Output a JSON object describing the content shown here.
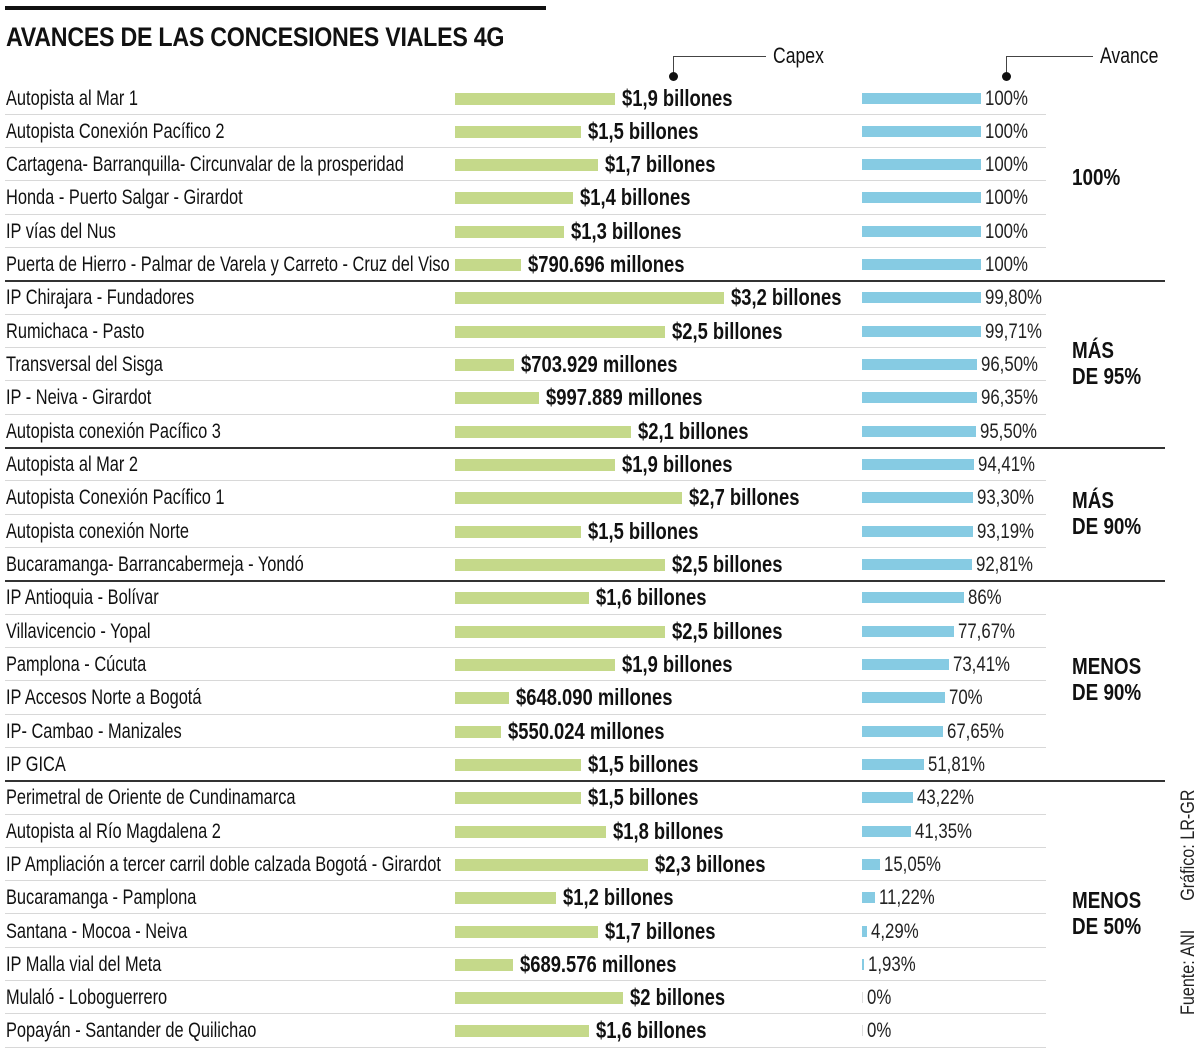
{
  "title": "AVANCES DE LAS CONCESIONES VIALES 4G",
  "source": "Fuente: ANI",
  "credit": "Gráfico: LR-GR",
  "colors": {
    "capex": "#c5d98a",
    "avance": "#86cbe3"
  },
  "chart_data": {
    "type": "bar",
    "orientation": "horizontal",
    "title": "AVANCES DE LAS CONCESIONES VIALES 4G",
    "series": [
      {
        "name": "Capex",
        "unit": "billones COP"
      },
      {
        "name": "Avance",
        "unit": "%"
      }
    ],
    "groups": [
      {
        "label": "100%",
        "rows": [
          0,
          5
        ]
      },
      {
        "label": "MÁS DE 95%",
        "line1": "MÁS",
        "line2": "DE 95%",
        "rows": [
          6,
          10
        ]
      },
      {
        "label": "MÁS DE 90%",
        "line1": "MÁS",
        "line2": "DE 90%",
        "rows": [
          11,
          14
        ]
      },
      {
        "label": "MENOS DE 90%",
        "line1": "MENOS",
        "line2": "DE 90%",
        "rows": [
          15,
          20
        ]
      },
      {
        "label": "MENOS DE 50%",
        "line1": "MENOS",
        "line2": "DE 50%",
        "rows": [
          21,
          28
        ]
      }
    ],
    "rows": [
      {
        "name": "Autopista al Mar 1",
        "capex": 1.9,
        "capex_label": "$1,9 billones",
        "avance": 100,
        "avance_label": "100%"
      },
      {
        "name": "Autopista Conexión Pacífico 2",
        "capex": 1.5,
        "capex_label": "$1,5 billones",
        "avance": 100,
        "avance_label": "100%"
      },
      {
        "name": "Cartagena- Barranquilla- Circunvalar de la prosperidad",
        "capex": 1.7,
        "capex_label": "$1,7 billones",
        "avance": 100,
        "avance_label": "100%"
      },
      {
        "name": "Honda - Puerto Salgar - Girardot",
        "capex": 1.4,
        "capex_label": "$1,4 billones",
        "avance": 100,
        "avance_label": "100%"
      },
      {
        "name": "IP vías del Nus",
        "capex": 1.3,
        "capex_label": "$1,3 billones",
        "avance": 100,
        "avance_label": "100%"
      },
      {
        "name": "Puerta de Hierro - Palmar de Varela y Carreto - Cruz del Viso",
        "capex": 0.790696,
        "capex_label": "$790.696 millones",
        "avance": 100,
        "avance_label": "100%"
      },
      {
        "name": "IP Chirajara - Fundadores",
        "capex": 3.2,
        "capex_label": "$3,2 billones",
        "avance": 99.8,
        "avance_label": "99,80%"
      },
      {
        "name": "Rumichaca - Pasto",
        "capex": 2.5,
        "capex_label": "$2,5 billones",
        "avance": 99.71,
        "avance_label": "99,71%"
      },
      {
        "name": "Transversal del Sisga",
        "capex": 0.703929,
        "capex_label": "$703.929 millones",
        "avance": 96.5,
        "avance_label": "96,50%"
      },
      {
        "name": "IP - Neiva - Girardot",
        "capex": 0.997889,
        "capex_label": "$997.889 millones",
        "avance": 96.35,
        "avance_label": "96,35%"
      },
      {
        "name": "Autopista conexión Pacífico 3",
        "capex": 2.1,
        "capex_label": "$2,1 billones",
        "avance": 95.5,
        "avance_label": "95,50%"
      },
      {
        "name": "Autopista al Mar 2",
        "capex": 1.9,
        "capex_label": "$1,9 billones",
        "avance": 94.41,
        "avance_label": "94,41%"
      },
      {
        "name": "Autopista Conexión Pacífico 1",
        "capex": 2.7,
        "capex_label": "$2,7 billones",
        "avance": 93.3,
        "avance_label": "93,30%"
      },
      {
        "name": "Autopista conexión Norte",
        "capex": 1.5,
        "capex_label": "$1,5 billones",
        "avance": 93.19,
        "avance_label": "93,19%"
      },
      {
        "name": "Bucaramanga- Barrancabermeja - Yondó",
        "capex": 2.5,
        "capex_label": "$2,5 billones",
        "avance": 92.81,
        "avance_label": "92,81%"
      },
      {
        "name": "IP Antioquia - Bolívar",
        "capex": 1.6,
        "capex_label": "$1,6 billones",
        "avance": 86,
        "avance_label": "86%"
      },
      {
        "name": "Villavicencio - Yopal",
        "capex": 2.5,
        "capex_label": "$2,5 billones",
        "avance": 77.67,
        "avance_label": "77,67%"
      },
      {
        "name": "Pamplona - Cúcuta",
        "capex": 1.9,
        "capex_label": "$1,9 billones",
        "avance": 73.41,
        "avance_label": "73,41%"
      },
      {
        "name": "IP Accesos Norte a Bogotá",
        "capex": 0.64809,
        "capex_label": "$648.090 millones",
        "avance": 70,
        "avance_label": "70%"
      },
      {
        "name": "IP- Cambao - Manizales",
        "capex": 0.550024,
        "capex_label": "$550.024 millones",
        "avance": 67.65,
        "avance_label": "67,65%"
      },
      {
        "name": "IP GICA",
        "capex": 1.5,
        "capex_label": "$1,5 billones",
        "avance": 51.81,
        "avance_label": "51,81%"
      },
      {
        "name": "Perimetral de Oriente de Cundinamarca",
        "capex": 1.5,
        "capex_label": "$1,5 billones",
        "avance": 43.22,
        "avance_label": "43,22%"
      },
      {
        "name": "Autopista al Río Magdalena 2",
        "capex": 1.8,
        "capex_label": "$1,8 billones",
        "avance": 41.35,
        "avance_label": "41,35%"
      },
      {
        "name": "IP Ampliación a tercer carril doble calzada Bogotá - Girardot",
        "capex": 2.3,
        "capex_label": "$2,3 billones",
        "avance": 15.05,
        "avance_label": "15,05%"
      },
      {
        "name": "Bucaramanga - Pamplona",
        "capex": 1.2,
        "capex_label": "$1,2 billones",
        "avance": 11.22,
        "avance_label": "11,22%"
      },
      {
        "name": "Santana - Mocoa - Neiva",
        "capex": 1.7,
        "capex_label": "$1,7 billones",
        "avance": 4.29,
        "avance_label": "4,29%"
      },
      {
        "name": "IP Malla vial del Meta",
        "capex": 0.689576,
        "capex_label": "$689.576 millones",
        "avance": 1.93,
        "avance_label": "1,93%"
      },
      {
        "name": "Mulaló - Loboguerrero",
        "capex": 2,
        "capex_label": "$2 billones",
        "avance": 0,
        "avance_label": "0%"
      },
      {
        "name": "Popayán - Santander de Quilichao",
        "capex": 1.6,
        "capex_label": "$1,6 billones",
        "avance": 0,
        "avance_label": "0%"
      }
    ]
  }
}
